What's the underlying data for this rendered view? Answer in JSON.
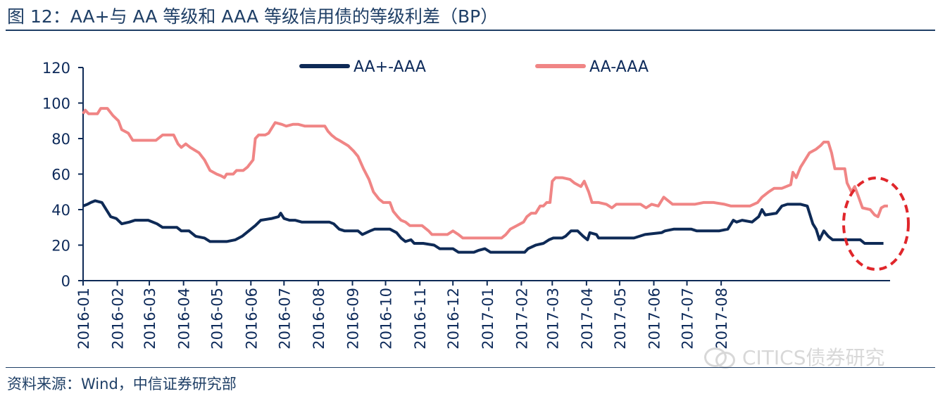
{
  "header": {
    "title": "图 12：AA+与 AA 等级和 AAA 等级信用债的等级利差（BP）"
  },
  "footer": {
    "source": "资料来源：Wind，中信证券研究部"
  },
  "watermark": {
    "text": "CITICS债券研究",
    "icon": "wechat-icon"
  },
  "colors": {
    "series_1": "#0e2a56",
    "series_2": "#f08585",
    "axis": "#0e2a56",
    "highlight": "#e0262b"
  },
  "chart_data": {
    "type": "line",
    "title": "图 12：AA+与 AA 等级和 AAA 等级信用债的等级利差（BP）",
    "xlabel": "",
    "ylabel": "",
    "ylim": [
      0,
      120
    ],
    "yticks": [
      "0",
      "20",
      "40",
      "60",
      "80",
      "100",
      "120"
    ],
    "xticks": [
      "2016-01",
      "2016-02",
      "2016-03",
      "2016-04",
      "2016-05",
      "2016-06",
      "2016-07",
      "2016-08",
      "2016-09",
      "2016-10",
      "2016-11",
      "2016-12",
      "2017-01",
      "2017-02",
      "2017-03",
      "2017-04",
      "2017-05",
      "2017-06",
      "2017-07",
      "2017-08"
    ],
    "grid": false,
    "legend_position": "top",
    "annotation": "dashed red ellipse around July-August 2017",
    "series": [
      {
        "name": "AA+-AAA",
        "points": [
          [
            "2016-01-01",
            42
          ],
          [
            "2016-01-05",
            43
          ],
          [
            "2016-01-08",
            44
          ],
          [
            "2016-01-12",
            45
          ],
          [
            "2016-01-18",
            44
          ],
          [
            "2016-01-22",
            40
          ],
          [
            "2016-01-26",
            36
          ],
          [
            "2016-01-31",
            35
          ],
          [
            "2016-02-05",
            32
          ],
          [
            "2016-02-12",
            33
          ],
          [
            "2016-02-17",
            34
          ],
          [
            "2016-02-29",
            34
          ],
          [
            "2016-03-08",
            32
          ],
          [
            "2016-03-13",
            30
          ],
          [
            "2016-03-26",
            30
          ],
          [
            "2016-03-30",
            28
          ],
          [
            "2016-04-06",
            28
          ],
          [
            "2016-04-12",
            25
          ],
          [
            "2016-04-20",
            24
          ],
          [
            "2016-04-25",
            22
          ],
          [
            "2016-05-10",
            22
          ],
          [
            "2016-05-18",
            23
          ],
          [
            "2016-05-24",
            25
          ],
          [
            "2016-05-30",
            28
          ],
          [
            "2016-06-05",
            31
          ],
          [
            "2016-06-10",
            34
          ],
          [
            "2016-06-20",
            35
          ],
          [
            "2016-06-26",
            36
          ],
          [
            "2016-06-28",
            38
          ],
          [
            "2016-07-01",
            35
          ],
          [
            "2016-07-06",
            34
          ],
          [
            "2016-07-11",
            34
          ],
          [
            "2016-07-17",
            33
          ],
          [
            "2016-07-28",
            33
          ],
          [
            "2016-08-04",
            33
          ],
          [
            "2016-08-11",
            33
          ],
          [
            "2016-08-15",
            32
          ],
          [
            "2016-08-20",
            29
          ],
          [
            "2016-08-25",
            28
          ],
          [
            "2016-09-06",
            28
          ],
          [
            "2016-09-10",
            26
          ],
          [
            "2016-09-17",
            28
          ],
          [
            "2016-09-21",
            29
          ],
          [
            "2016-10-05",
            29
          ],
          [
            "2016-10-11",
            27
          ],
          [
            "2016-10-15",
            24
          ],
          [
            "2016-10-19",
            22
          ],
          [
            "2016-10-24",
            23
          ],
          [
            "2016-10-27",
            21
          ],
          [
            "2016-11-04",
            21
          ],
          [
            "2016-11-14",
            20
          ],
          [
            "2016-11-19",
            18
          ],
          [
            "2016-12-01",
            18
          ],
          [
            "2016-12-06",
            16
          ],
          [
            "2016-12-15",
            16
          ],
          [
            "2016-12-20",
            16
          ],
          [
            "2016-12-24",
            17
          ],
          [
            "2016-12-30",
            18
          ],
          [
            "2017-01-04",
            16
          ],
          [
            "2017-01-28",
            16
          ],
          [
            "2017-02-04",
            16
          ],
          [
            "2017-02-07",
            18
          ],
          [
            "2017-02-14",
            20
          ],
          [
            "2017-02-21",
            21
          ],
          [
            "2017-02-26",
            23
          ],
          [
            "2017-03-02",
            24
          ],
          [
            "2017-03-10",
            24
          ],
          [
            "2017-03-13",
            25
          ],
          [
            "2017-03-18",
            28
          ],
          [
            "2017-03-24",
            28
          ],
          [
            "2017-03-29",
            25
          ],
          [
            "2017-04-02",
            23
          ],
          [
            "2017-04-04",
            27
          ],
          [
            "2017-04-10",
            26
          ],
          [
            "2017-04-12",
            24
          ],
          [
            "2017-05-01",
            24
          ],
          [
            "2017-05-14",
            24
          ],
          [
            "2017-05-24",
            26
          ],
          [
            "2017-06-08",
            27
          ],
          [
            "2017-06-11",
            28
          ],
          [
            "2017-06-19",
            29
          ],
          [
            "2017-07-05",
            29
          ],
          [
            "2017-07-10",
            28
          ],
          [
            "2017-07-30",
            28
          ],
          [
            "2017-08-07",
            29
          ],
          [
            "2017-08-12",
            34
          ],
          [
            "2017-08-15",
            33
          ],
          [
            "2017-08-20",
            34
          ],
          [
            "2017-08-29",
            33
          ],
          [
            "2017-09-04",
            36
          ],
          [
            "2017-09-07",
            40
          ],
          [
            "2017-09-10",
            37
          ],
          [
            "2017-09-20",
            38
          ],
          [
            "2017-09-25",
            42
          ],
          [
            "2017-09-30",
            43
          ],
          [
            "2017-10-12",
            43
          ],
          [
            "2017-10-18",
            42
          ],
          [
            "2017-10-23",
            32
          ],
          [
            "2017-10-26",
            29
          ],
          [
            "2017-10-29",
            23
          ],
          [
            "2017-11-02",
            28
          ],
          [
            "2017-11-06",
            25
          ],
          [
            "2017-11-10",
            23
          ],
          [
            "2017-12-05",
            23
          ],
          [
            "2017-12-09",
            21
          ],
          [
            "2017-12-26",
            21
          ]
        ]
      },
      {
        "name": "AA-AAA",
        "points": [
          [
            "2016-01-01",
            94
          ],
          [
            "2016-01-03",
            96
          ],
          [
            "2016-01-06",
            94
          ],
          [
            "2016-01-14",
            94
          ],
          [
            "2016-01-17",
            97
          ],
          [
            "2016-01-23",
            97
          ],
          [
            "2016-01-28",
            93
          ],
          [
            "2016-02-02",
            90
          ],
          [
            "2016-02-05",
            85
          ],
          [
            "2016-02-11",
            83
          ],
          [
            "2016-02-15",
            79
          ],
          [
            "2016-02-28",
            79
          ],
          [
            "2016-03-07",
            79
          ],
          [
            "2016-03-13",
            82
          ],
          [
            "2016-03-23",
            82
          ],
          [
            "2016-03-27",
            77
          ],
          [
            "2016-03-30",
            75
          ],
          [
            "2016-04-03",
            77
          ],
          [
            "2016-04-07",
            75
          ],
          [
            "2016-04-15",
            72
          ],
          [
            "2016-04-20",
            68
          ],
          [
            "2016-04-25",
            62
          ],
          [
            "2016-05-01",
            60
          ],
          [
            "2016-05-05",
            59
          ],
          [
            "2016-05-08",
            58
          ],
          [
            "2016-05-10",
            60
          ],
          [
            "2016-05-16",
            60
          ],
          [
            "2016-05-19",
            62
          ],
          [
            "2016-05-25",
            62
          ],
          [
            "2016-05-29",
            64
          ],
          [
            "2016-06-03",
            68
          ],
          [
            "2016-06-05",
            80
          ],
          [
            "2016-06-08",
            82
          ],
          [
            "2016-06-14",
            82
          ],
          [
            "2016-06-17",
            83
          ],
          [
            "2016-06-20",
            86
          ],
          [
            "2016-06-23",
            89
          ],
          [
            "2016-06-29",
            88
          ],
          [
            "2016-07-03",
            87
          ],
          [
            "2016-07-09",
            88
          ],
          [
            "2016-07-14",
            88
          ],
          [
            "2016-07-20",
            87
          ],
          [
            "2016-08-04",
            87
          ],
          [
            "2016-08-07",
            87
          ],
          [
            "2016-08-10",
            84
          ],
          [
            "2016-08-13",
            82
          ],
          [
            "2016-08-17",
            80
          ],
          [
            "2016-08-20",
            79
          ],
          [
            "2016-08-28",
            76
          ],
          [
            "2016-09-02",
            73
          ],
          [
            "2016-09-06",
            70
          ],
          [
            "2016-09-11",
            63
          ],
          [
            "2016-09-16",
            57
          ],
          [
            "2016-09-20",
            50
          ],
          [
            "2016-09-25",
            46
          ],
          [
            "2016-09-29",
            44
          ],
          [
            "2016-10-05",
            44
          ],
          [
            "2016-10-08",
            39
          ],
          [
            "2016-10-12",
            36
          ],
          [
            "2016-10-15",
            34
          ],
          [
            "2016-10-19",
            33
          ],
          [
            "2016-10-23",
            31
          ],
          [
            "2016-11-03",
            31
          ],
          [
            "2016-11-09",
            28
          ],
          [
            "2016-11-12",
            26
          ],
          [
            "2016-11-26",
            26
          ],
          [
            "2016-12-01",
            28
          ],
          [
            "2016-12-06",
            26
          ],
          [
            "2016-12-10",
            24
          ],
          [
            "2016-12-25",
            24
          ],
          [
            "2017-01-10",
            24
          ],
          [
            "2017-01-14",
            24
          ],
          [
            "2017-01-18",
            26
          ],
          [
            "2017-01-22",
            29
          ],
          [
            "2017-01-28",
            31
          ],
          [
            "2017-02-03",
            33
          ],
          [
            "2017-02-06",
            36
          ],
          [
            "2017-02-10",
            38
          ],
          [
            "2017-02-14",
            38
          ],
          [
            "2017-02-18",
            42
          ],
          [
            "2017-02-21",
            42
          ],
          [
            "2017-02-24",
            44
          ],
          [
            "2017-02-27",
            44
          ],
          [
            "2017-03-01",
            56
          ],
          [
            "2017-03-04",
            58
          ],
          [
            "2017-03-10",
            58
          ],
          [
            "2017-03-17",
            57
          ],
          [
            "2017-03-21",
            55
          ],
          [
            "2017-03-27",
            53
          ],
          [
            "2017-03-30",
            56
          ],
          [
            "2017-04-03",
            50
          ],
          [
            "2017-04-06",
            44
          ],
          [
            "2017-04-12",
            44
          ],
          [
            "2017-04-19",
            43
          ],
          [
            "2017-04-24",
            41
          ],
          [
            "2017-04-28",
            43
          ],
          [
            "2017-05-20",
            43
          ],
          [
            "2017-05-25",
            41
          ],
          [
            "2017-05-30",
            43
          ],
          [
            "2017-06-05",
            42
          ],
          [
            "2017-06-10",
            47
          ],
          [
            "2017-06-14",
            45
          ],
          [
            "2017-06-18",
            43
          ],
          [
            "2017-07-08",
            43
          ],
          [
            "2017-07-16",
            44
          ],
          [
            "2017-07-25",
            44
          ],
          [
            "2017-08-04",
            43
          ],
          [
            "2017-08-10",
            42
          ],
          [
            "2017-08-27",
            42
          ],
          [
            "2017-09-03",
            44
          ],
          [
            "2017-09-07",
            47
          ],
          [
            "2017-09-13",
            50
          ],
          [
            "2017-09-18",
            52
          ],
          [
            "2017-09-25",
            52
          ],
          [
            "2017-10-03",
            54
          ],
          [
            "2017-10-05",
            61
          ],
          [
            "2017-10-08",
            58
          ],
          [
            "2017-10-12",
            64
          ],
          [
            "2017-10-16",
            68
          ],
          [
            "2017-10-20",
            72
          ],
          [
            "2017-10-26",
            74
          ],
          [
            "2017-10-30",
            76
          ],
          [
            "2017-11-02",
            78
          ],
          [
            "2017-11-06",
            78
          ],
          [
            "2017-11-09",
            72
          ],
          [
            "2017-11-12",
            63
          ],
          [
            "2017-11-16",
            63
          ],
          [
            "2017-11-21",
            63
          ],
          [
            "2017-11-23",
            55
          ],
          [
            "2017-11-27",
            50
          ],
          [
            "2017-11-30",
            53
          ],
          [
            "2017-12-03",
            48
          ],
          [
            "2017-12-07",
            41
          ],
          [
            "2017-12-14",
            40
          ],
          [
            "2017-12-18",
            37
          ],
          [
            "2017-12-21",
            36
          ],
          [
            "2017-12-24",
            41
          ],
          [
            "2017-12-27",
            42
          ],
          [
            "2017-12-30",
            42
          ]
        ]
      }
    ]
  }
}
